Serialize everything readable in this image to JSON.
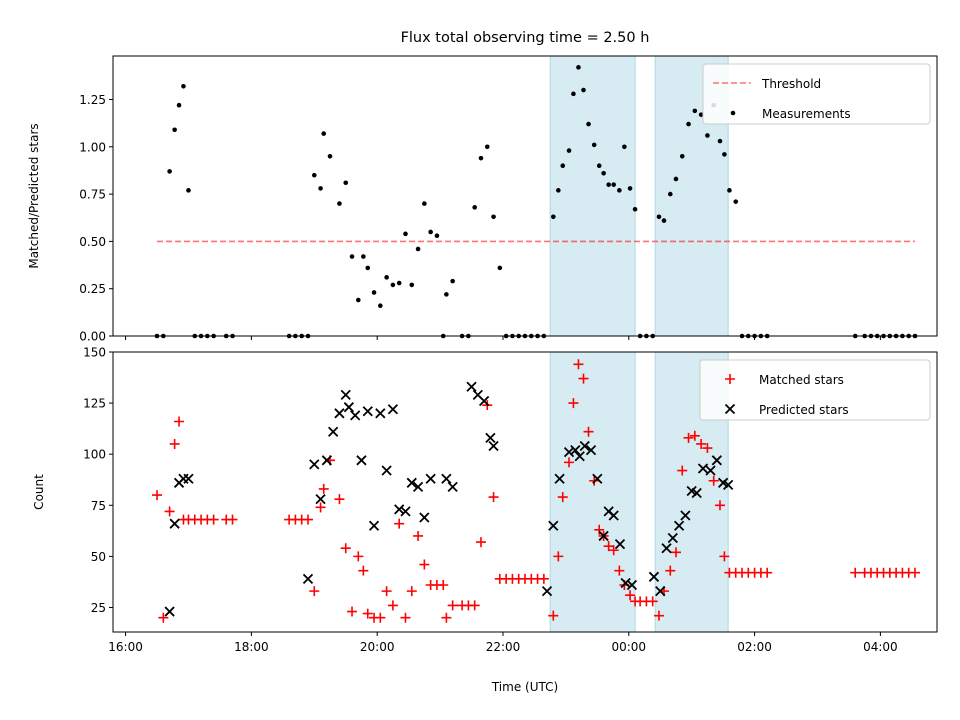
{
  "title": "Flux total observing time = 2.50 h",
  "colors": {
    "band": "#add8e6",
    "threshold": "#ff0000",
    "measurement": "#000000",
    "matched": "#ff0000",
    "predicted": "#000000"
  },
  "chart_data": [
    {
      "type": "scatter",
      "ylabel": "Matched/Predicted stars",
      "xlim": [
        -0.2,
        12.9
      ],
      "ylim": [
        0,
        1.48
      ],
      "yticks": [
        0.0,
        0.25,
        0.5,
        0.75,
        1.0,
        1.25
      ],
      "ytick_labels": [
        "0.00",
        "0.25",
        "0.50",
        "0.75",
        "1.00",
        "1.25"
      ],
      "x_axis_note": "x values are hours since 16:00 UTC",
      "threshold": {
        "value": 0.5,
        "x_range": [
          0.5,
          12.55
        ],
        "name": "Threshold"
      },
      "shaded_bands": [
        [
          6.75,
          8.1
        ],
        [
          8.42,
          9.58
        ]
      ],
      "legend": {
        "placement": "top-right",
        "entries": [
          "Threshold",
          "Measurements"
        ]
      },
      "series": [
        {
          "name": "Measurements",
          "x": [
            0.5,
            0.6,
            0.7,
            0.78,
            0.85,
            0.92,
            1.0,
            1.1,
            1.2,
            1.3,
            1.4,
            1.6,
            1.7,
            2.6,
            2.7,
            2.8,
            2.9,
            3.0,
            3.1,
            3.15,
            3.25,
            3.4,
            3.5,
            3.6,
            3.7,
            3.78,
            3.85,
            3.95,
            4.05,
            4.15,
            4.25,
            4.35,
            4.45,
            4.55,
            4.65,
            4.75,
            4.85,
            4.95,
            5.05,
            5.1,
            5.2,
            5.35,
            5.45,
            5.55,
            5.65,
            5.75,
            5.85,
            5.95,
            6.05,
            6.15,
            6.25,
            6.35,
            6.45,
            6.55,
            6.65,
            6.8,
            6.88,
            6.95,
            7.05,
            7.12,
            7.2,
            7.28,
            7.36,
            7.45,
            7.53,
            7.6,
            7.68,
            7.76,
            7.85,
            7.93,
            8.02,
            8.1,
            8.18,
            8.28,
            8.38,
            8.48,
            8.56,
            8.66,
            8.75,
            8.85,
            8.95,
            9.05,
            9.15,
            9.25,
            9.35,
            9.45,
            9.52,
            9.6,
            9.7,
            9.8,
            9.9,
            10.0,
            10.1,
            10.2,
            11.6,
            11.75,
            11.85,
            11.95,
            12.05,
            12.15,
            12.25,
            12.35,
            12.45,
            12.55
          ],
          "y": [
            0,
            0,
            0.87,
            1.09,
            1.22,
            1.32,
            0.77,
            0,
            0,
            0,
            0,
            0,
            0,
            0,
            0,
            0,
            0,
            0.85,
            0.78,
            1.07,
            0.95,
            0.7,
            0.81,
            0.42,
            0.19,
            0.42,
            0.36,
            0.23,
            0.16,
            0.31,
            0.27,
            0.28,
            0.54,
            0.27,
            0.46,
            0.7,
            0.55,
            0.53,
            0,
            0.22,
            0.29,
            0,
            0,
            0.68,
            0.94,
            1.0,
            0.63,
            0.36,
            0,
            0,
            0,
            0,
            0,
            0,
            0,
            0.63,
            0.77,
            0.9,
            0.98,
            1.28,
            1.42,
            1.3,
            1.12,
            1.01,
            0.9,
            0.86,
            0.8,
            0.8,
            0.77,
            1.0,
            0.78,
            0.67,
            0,
            0,
            0,
            0.63,
            0.61,
            0.75,
            0.83,
            0.95,
            1.12,
            1.19,
            1.17,
            1.06,
            1.22,
            1.03,
            0.96,
            0.77,
            0.71,
            0,
            0,
            0,
            0,
            0,
            0,
            0,
            0,
            0,
            0,
            0,
            0,
            0,
            0,
            0
          ]
        }
      ]
    },
    {
      "type": "scatter",
      "xlabel": "Time (UTC)",
      "ylabel": "Count",
      "xlim": [
        -0.2,
        12.9
      ],
      "ylim": [
        13,
        150
      ],
      "yticks": [
        25,
        50,
        75,
        100,
        125,
        150
      ],
      "ytick_labels": [
        "25",
        "50",
        "75",
        "100",
        "125",
        "150"
      ],
      "xticks": [
        0,
        2,
        4,
        6,
        8,
        10,
        12
      ],
      "xtick_labels": [
        "16:00",
        "18:00",
        "20:00",
        "22:00",
        "00:00",
        "02:00",
        "04:00"
      ],
      "shaded_bands": [
        [
          6.75,
          8.1
        ],
        [
          8.42,
          9.58
        ]
      ],
      "legend": {
        "placement": "top-right",
        "entries": [
          "Matched stars",
          "Predicted stars"
        ]
      },
      "series": [
        {
          "name": "Matched stars",
          "x": [
            0.5,
            0.6,
            0.7,
            0.78,
            0.85,
            0.92,
            1.0,
            1.1,
            1.2,
            1.3,
            1.4,
            1.6,
            1.7,
            2.6,
            2.7,
            2.8,
            2.9,
            3.0,
            3.1,
            3.15,
            3.25,
            3.4,
            3.5,
            3.6,
            3.7,
            3.78,
            3.85,
            3.95,
            4.05,
            4.15,
            4.25,
            4.35,
            4.45,
            4.55,
            4.65,
            4.75,
            4.85,
            4.95,
            5.05,
            5.1,
            5.2,
            5.35,
            5.45,
            5.55,
            5.65,
            5.75,
            5.85,
            5.95,
            6.05,
            6.15,
            6.25,
            6.35,
            6.45,
            6.55,
            6.65,
            6.8,
            6.88,
            6.95,
            7.05,
            7.12,
            7.2,
            7.28,
            7.36,
            7.45,
            7.53,
            7.6,
            7.68,
            7.76,
            7.85,
            7.93,
            8.02,
            8.1,
            8.18,
            8.28,
            8.38,
            8.48,
            8.56,
            8.66,
            8.75,
            8.85,
            8.95,
            9.05,
            9.15,
            9.25,
            9.35,
            9.45,
            9.52,
            9.6,
            9.7,
            9.8,
            9.9,
            10.0,
            10.1,
            10.2,
            11.6,
            11.75,
            11.85,
            11.95,
            12.05,
            12.15,
            12.25,
            12.35,
            12.45,
            12.55
          ],
          "y": [
            80,
            20,
            72,
            105,
            116,
            68,
            68,
            68,
            68,
            68,
            68,
            68,
            68,
            68,
            68,
            68,
            68,
            33,
            74,
            83,
            97,
            78,
            54,
            23,
            50,
            43,
            22,
            20,
            20,
            33,
            26,
            66,
            20,
            33,
            60,
            46,
            36,
            36,
            36,
            20,
            26,
            26,
            26,
            26,
            57,
            124,
            79,
            39,
            39,
            39,
            39,
            39,
            39,
            39,
            39,
            21,
            50,
            79,
            96,
            125,
            144,
            137,
            111,
            87,
            63,
            60,
            55,
            53,
            43,
            36,
            31,
            28,
            28,
            28,
            28,
            21,
            33,
            43,
            52,
            92,
            108,
            109,
            105,
            103,
            87,
            75,
            50,
            42,
            42,
            42,
            42,
            42,
            42,
            42,
            42,
            42,
            42,
            42,
            42,
            42,
            42,
            42,
            42,
            42
          ]
        },
        {
          "name": "Predicted stars",
          "x": [
            0.7,
            0.78,
            0.85,
            0.92,
            1.0,
            2.9,
            3.0,
            3.1,
            3.2,
            3.3,
            3.4,
            3.5,
            3.55,
            3.65,
            3.75,
            3.85,
            3.95,
            4.05,
            4.15,
            4.25,
            4.35,
            4.45,
            4.55,
            4.65,
            4.75,
            4.85,
            5.1,
            5.2,
            5.5,
            5.6,
            5.7,
            5.8,
            5.85,
            6.7,
            6.8,
            6.9,
            7.05,
            7.15,
            7.22,
            7.3,
            7.4,
            7.5,
            7.6,
            7.68,
            7.76,
            7.86,
            7.95,
            8.05,
            8.4,
            8.5,
            8.6,
            8.7,
            8.8,
            8.9,
            9.0,
            9.08,
            9.18,
            9.3,
            9.4,
            9.5,
            9.58
          ],
          "y": [
            23,
            66,
            86,
            88,
            88,
            39,
            95,
            78,
            97,
            111,
            120,
            129,
            123,
            119,
            97,
            121,
            65,
            120,
            92,
            122,
            73,
            72,
            86,
            84,
            69,
            88,
            88,
            84,
            133,
            129,
            126,
            108,
            104,
            33,
            65,
            88,
            101,
            102,
            99,
            104,
            102,
            88,
            60,
            72,
            70,
            56,
            37,
            36,
            40,
            33,
            54,
            59,
            65,
            70,
            82,
            81,
            93,
            92,
            97,
            86,
            85
          ]
        }
      ]
    }
  ]
}
